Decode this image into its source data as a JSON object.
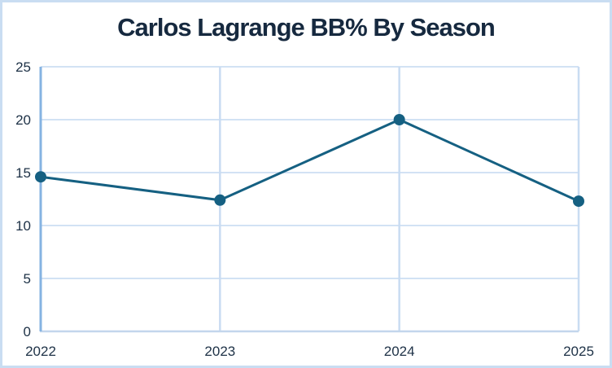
{
  "chart_data": {
    "type": "line",
    "title": "Carlos Lagrange BB% By Season",
    "categories": [
      "2022",
      "2023",
      "2024",
      "2025"
    ],
    "series": [
      {
        "name": "BB%",
        "values": [
          14.6,
          12.4,
          20,
          12.3
        ]
      }
    ],
    "xlabel": "",
    "ylabel": "",
    "ylim": [
      0,
      25
    ],
    "yticks": [
      0,
      5,
      10,
      15,
      20,
      25
    ],
    "grid": true,
    "legend": "none",
    "colors": {
      "line": "#156082",
      "marker": "#156082",
      "gridline_horizontal": "#d2e2f4",
      "gridline_vertical": "#c9dcf2",
      "y_axis_line": "#85b3e2",
      "x_axis_line": "#c3d6ec",
      "tick_label": "#1d3146",
      "title": "#16293f",
      "card_border": "#c9ddf2",
      "background": "#ffffff"
    }
  }
}
